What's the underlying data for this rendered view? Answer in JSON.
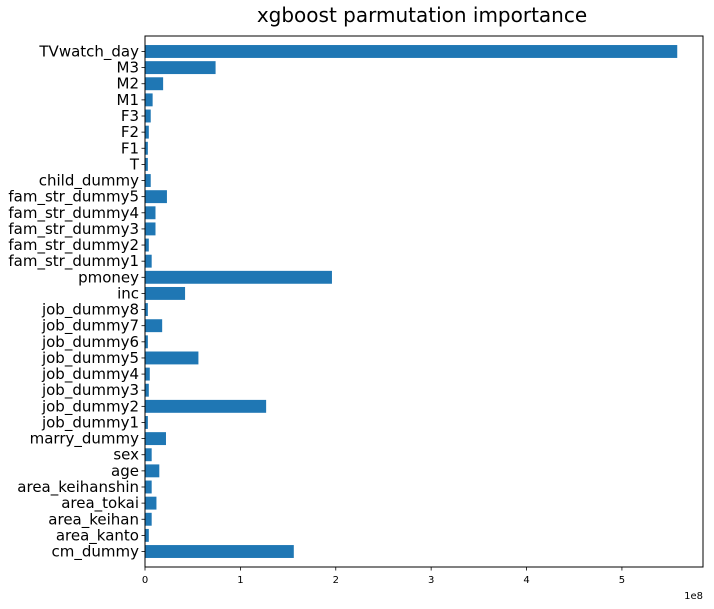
{
  "chart_data": {
    "type": "bar",
    "orientation": "horizontal",
    "title": "xgboost parmutation importance",
    "xlabel": "",
    "ylabel": "",
    "x_offset_label": "1e8",
    "x_scale": 100000000,
    "xlim": [
      0,
      5.85
    ],
    "xticks": [
      0,
      1,
      2,
      3,
      4,
      5
    ],
    "xtick_labels": [
      "0",
      "1",
      "2",
      "3",
      "4",
      "5"
    ],
    "grid": false,
    "bar_color": "#1f77b4",
    "categories": [
      "TVwatch_day",
      "M3",
      "M2",
      "M1",
      "F3",
      "F2",
      "F1",
      "T",
      "child_dummy",
      "fam_str_dummy5",
      "fam_str_dummy4",
      "fam_str_dummy3",
      "fam_str_dummy2",
      "fam_str_dummy1",
      "pmoney",
      "inc",
      "job_dummy8",
      "job_dummy7",
      "job_dummy6",
      "job_dummy5",
      "job_dummy4",
      "job_dummy3",
      "job_dummy2",
      "job_dummy1",
      "marry_dummy",
      "sex",
      "age",
      "area_keihanshin",
      "area_tokai",
      "area_keihan",
      "area_kanto",
      "cm_dummy"
    ],
    "values": [
      5.58,
      0.74,
      0.19,
      0.08,
      0.06,
      0.04,
      0.03,
      0.03,
      0.06,
      0.23,
      0.11,
      0.11,
      0.04,
      0.07,
      1.96,
      0.42,
      0.03,
      0.18,
      0.03,
      0.56,
      0.05,
      0.04,
      1.27,
      0.03,
      0.22,
      0.07,
      0.15,
      0.07,
      0.12,
      0.07,
      0.04,
      1.56
    ]
  }
}
